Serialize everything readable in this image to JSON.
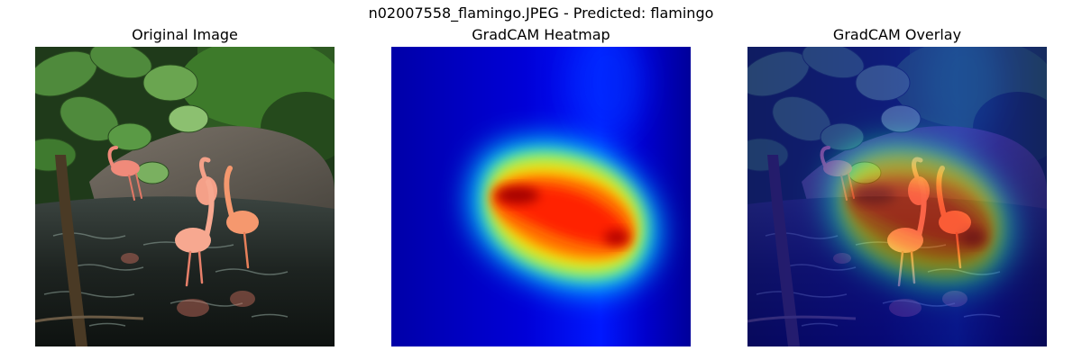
{
  "figure": {
    "suptitle": "n02007558_flamingo.JPEG - Predicted: flamingo"
  },
  "panels": [
    {
      "title": "Original Image"
    },
    {
      "title": "GradCAM Heatmap"
    },
    {
      "title": "GradCAM Overlay"
    }
  ]
}
